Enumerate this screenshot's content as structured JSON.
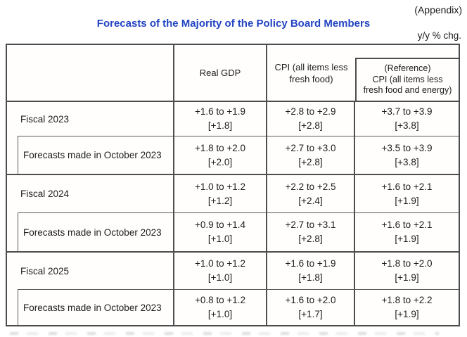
{
  "page": {
    "appendix_label": "(Appendix)",
    "title": "Forecasts of the Majority of the Policy Board Members",
    "unit_label": "y/y % chg."
  },
  "table": {
    "header": {
      "real_gdp": "Real GDP",
      "cpi_line1": "CPI (all items less",
      "cpi_line2": "fresh food)",
      "ref_line1": "(Reference)",
      "ref_line2": "CPI (all items less",
      "ref_line3": "fresh food and energy)"
    },
    "groups": [
      {
        "fiscal": {
          "label": "Fiscal 2023",
          "gdp_range": "+1.6 to +1.9",
          "gdp_median": "[+1.8]",
          "cpi_range": "+2.8 to +2.9",
          "cpi_median": "[+2.8]",
          "ref_range": "+3.7 to +3.9",
          "ref_median": "[+3.8]"
        },
        "october": {
          "label": "Forecasts made in October 2023",
          "gdp_range": "+1.8 to +2.0",
          "gdp_median": "[+2.0]",
          "cpi_range": "+2.7 to +3.0",
          "cpi_median": "[+2.8]",
          "ref_range": "+3.5 to +3.9",
          "ref_median": "[+3.8]"
        }
      },
      {
        "fiscal": {
          "label": "Fiscal 2024",
          "gdp_range": "+1.0 to +1.2",
          "gdp_median": "[+1.2]",
          "cpi_range": "+2.2 to +2.5",
          "cpi_median": "[+2.4]",
          "ref_range": "+1.6 to +2.1",
          "ref_median": "[+1.9]"
        },
        "october": {
          "label": "Forecasts made in October 2023",
          "gdp_range": "+0.9 to +1.4",
          "gdp_median": "[+1.0]",
          "cpi_range": "+2.7 to +3.1",
          "cpi_median": "[+2.8]",
          "ref_range": "+1.6 to +2.1",
          "ref_median": "[+1.9]"
        }
      },
      {
        "fiscal": {
          "label": "Fiscal 2025",
          "gdp_range": "+1.0 to +1.2",
          "gdp_median": "[+1.0]",
          "cpi_range": "+1.6 to +1.9",
          "cpi_median": "[+1.8]",
          "ref_range": "+1.8 to +2.0",
          "ref_median": "[+1.9]"
        },
        "october": {
          "label": "Forecasts made in October 2023",
          "gdp_range": "+0.8 to +1.2",
          "gdp_median": "[+1.0]",
          "cpi_range": "+1.6 to +2.0",
          "cpi_median": "[+1.7]",
          "ref_range": "+1.8 to +2.2",
          "ref_median": "[+1.9]"
        }
      }
    ]
  }
}
